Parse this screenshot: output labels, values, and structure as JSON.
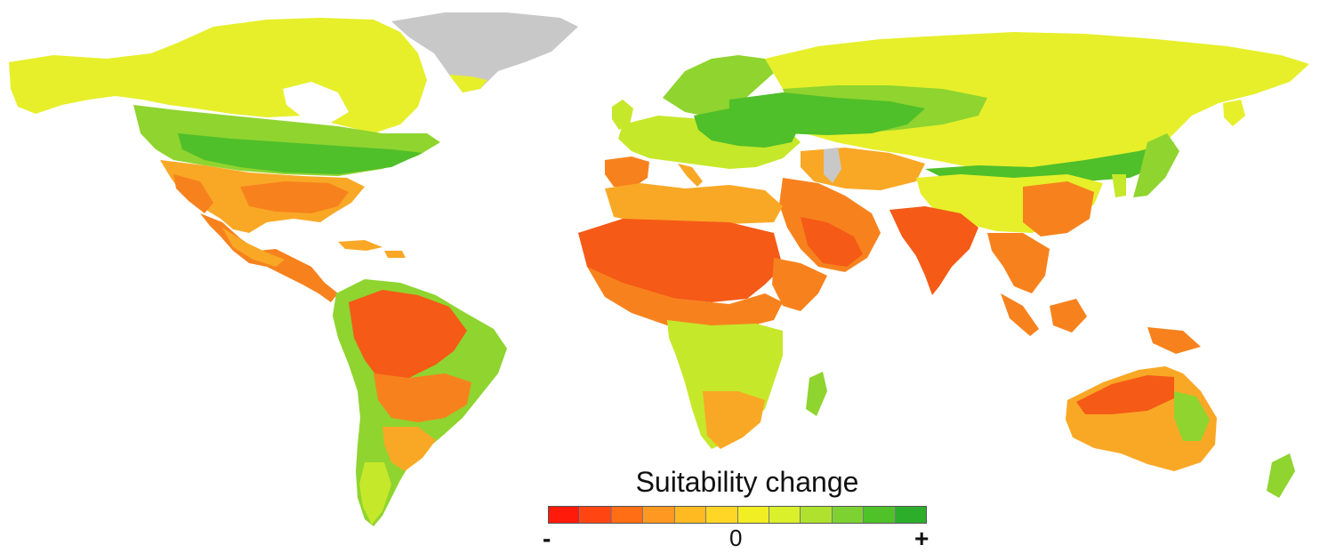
{
  "legend": {
    "title": "Suitability change",
    "min_label": "-",
    "mid_label": "0",
    "max_label": "+",
    "colors": [
      "#ff1a0a",
      "#ff4512",
      "#ff6e14",
      "#ff9820",
      "#ffba22",
      "#ffd626",
      "#f2ee24",
      "#d9f02a",
      "#aee22e",
      "#7dd232",
      "#4fc22a",
      "#2cae2a"
    ]
  },
  "palette": {
    "no_data": "#c8c8c8",
    "strong_negative": "#f55a17",
    "negative": "#f7821d",
    "slight_negative": "#f9a825",
    "neutral": "#e6ef2a",
    "slight_positive": "#c6e82a",
    "positive": "#8fd42f",
    "strong_positive": "#4fbf2a"
  }
}
